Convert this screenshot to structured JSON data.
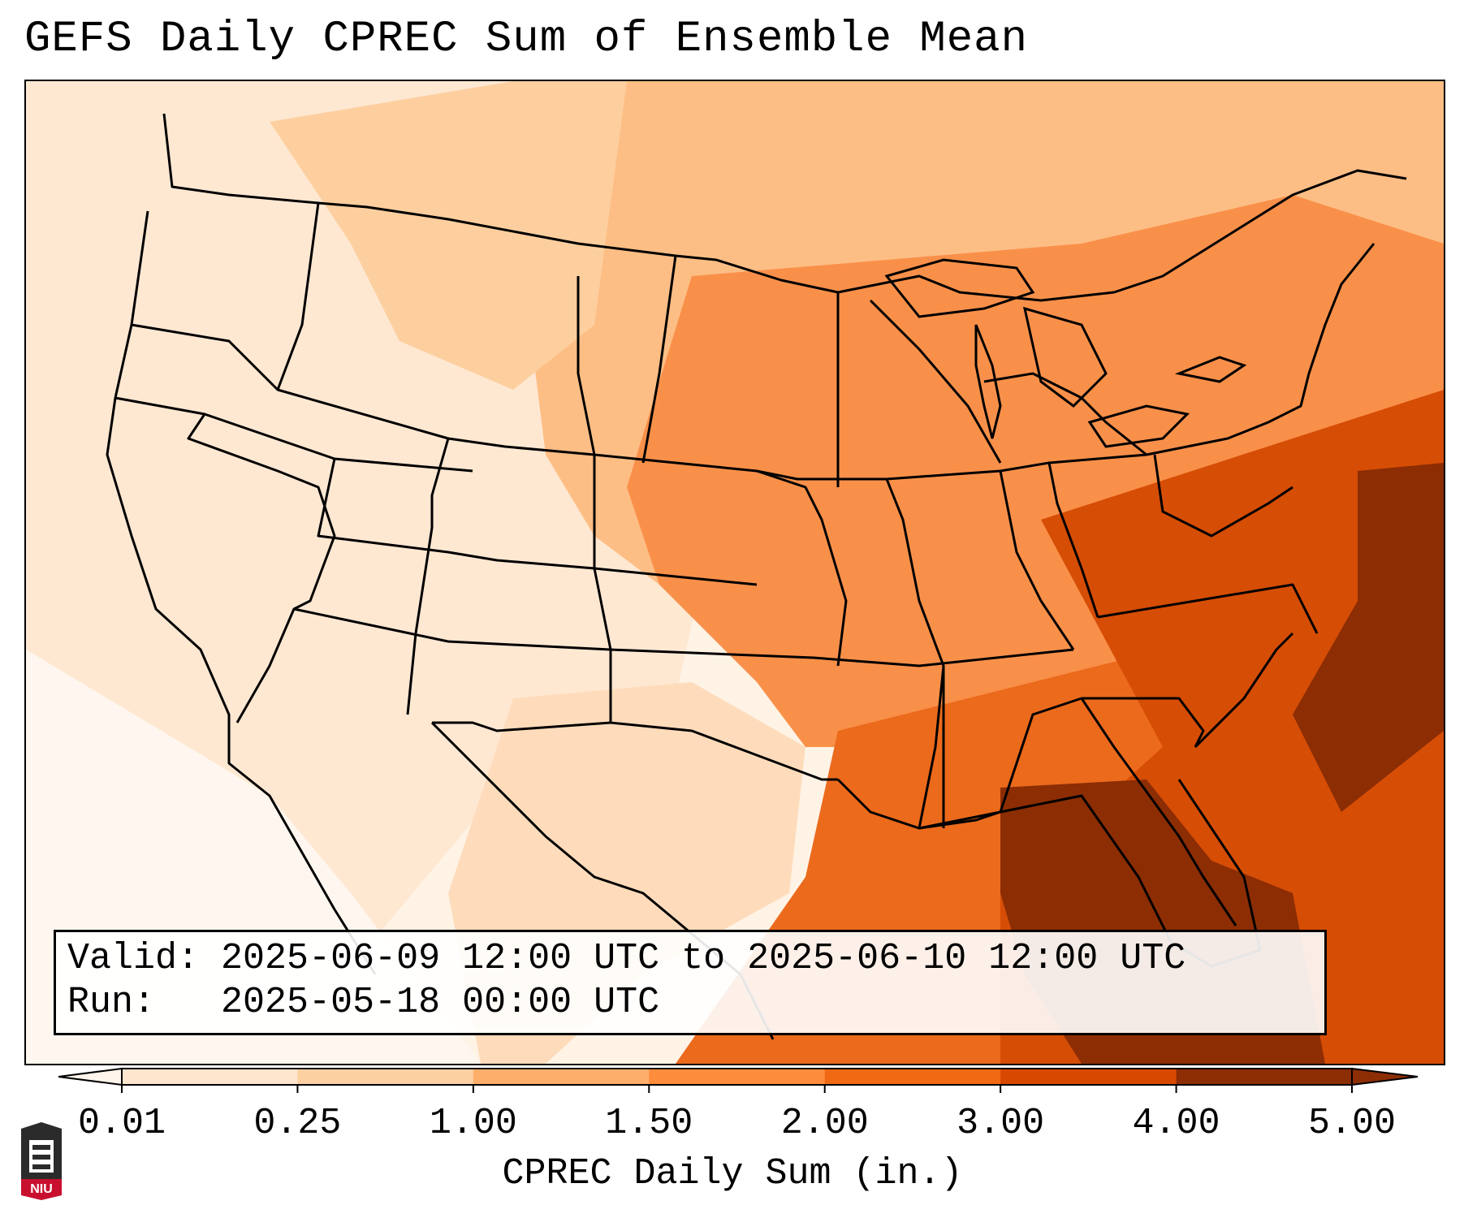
{
  "title": "GEFS Daily CPREC Sum of Ensemble Mean",
  "info": {
    "valid_label": "Valid:",
    "valid_value": "2025-06-09 12:00 UTC to 2025-06-10 12:00 UTC",
    "run_label": "Run:",
    "run_value": "2025-05-18 00:00 UTC"
  },
  "colorbar": {
    "label": "CPREC Daily Sum (in.)",
    "ticks": [
      "0.01",
      "0.25",
      "1.00",
      "1.50",
      "2.00",
      "3.00",
      "4.00",
      "5.00"
    ],
    "colors": [
      "#fff5eb",
      "#fee6ce",
      "#fdd0a2",
      "#fdae6b",
      "#fd8d3c",
      "#f16913",
      "#d94801",
      "#8c2d04"
    ],
    "extend": "both"
  },
  "logo": {
    "text": "NIU",
    "icon": "niu-logo-icon"
  }
}
